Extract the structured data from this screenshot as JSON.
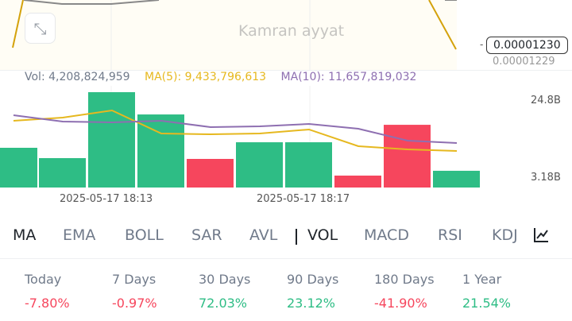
{
  "price_chart": {
    "current_price": "0.00001230",
    "under_price": "0.00001229"
  },
  "volume_info": {
    "vol": "Vol: 4,208,824,959",
    "ma5": "MA(5): 9,433,796,613",
    "ma10": "MA(10): 11,657,819,032"
  },
  "chart_data": {
    "type": "bar",
    "ylim": [
      0.5,
      28
    ],
    "y_tick_labels": [
      "24.8B",
      "3.18B"
    ],
    "x_tick_labels": [
      "2025-05-17 18:13",
      "2025-05-17 18:17"
    ],
    "bar_values_billions": [
      11.65,
      8.75,
      27.25,
      21.0,
      8.53,
      13.2,
      13.2,
      3.85,
      18.1,
      5.2
    ],
    "bar_colors": [
      "up",
      "up",
      "up",
      "up",
      "down",
      "up",
      "up",
      "down",
      "down",
      "up"
    ],
    "series": [
      {
        "name": "MA(5)",
        "color": "#e6b81f",
        "values": [
          19.23,
          20.12,
          22.13,
          15.66,
          15.44,
          15.66,
          16.78,
          12.1,
          11.2,
          10.76
        ]
      },
      {
        "name": "MA(10)",
        "color": "#8e6fb1",
        "values": [
          20.79,
          19.0,
          18.78,
          19.23,
          17.45,
          17.67,
          18.34,
          17.0,
          13.66,
          12.99
        ]
      }
    ]
  },
  "colors": {
    "up": "#2ebd85",
    "down": "#f6465d",
    "ma5": "#e6b81f",
    "ma10": "#8e6fb1"
  },
  "tabs": [
    "MA",
    "EMA",
    "BOLL",
    "SAR",
    "AVL",
    "VOL",
    "MACD",
    "RSI",
    "KDJ"
  ],
  "active_tabs": [
    "MA",
    "VOL"
  ],
  "performance": [
    {
      "label": "Today",
      "value": "-7.80%",
      "trend": "down"
    },
    {
      "label": "7 Days",
      "value": "-0.97%",
      "trend": "down"
    },
    {
      "label": "30 Days",
      "value": "72.03%",
      "trend": "up"
    },
    {
      "label": "90 Days",
      "value": "23.12%",
      "trend": "up"
    },
    {
      "label": "180 Days",
      "value": "-41.90%",
      "trend": "down"
    },
    {
      "label": "1 Year",
      "value": "21.54%",
      "trend": "up"
    }
  ],
  "watermark": "Kamran ayyat"
}
